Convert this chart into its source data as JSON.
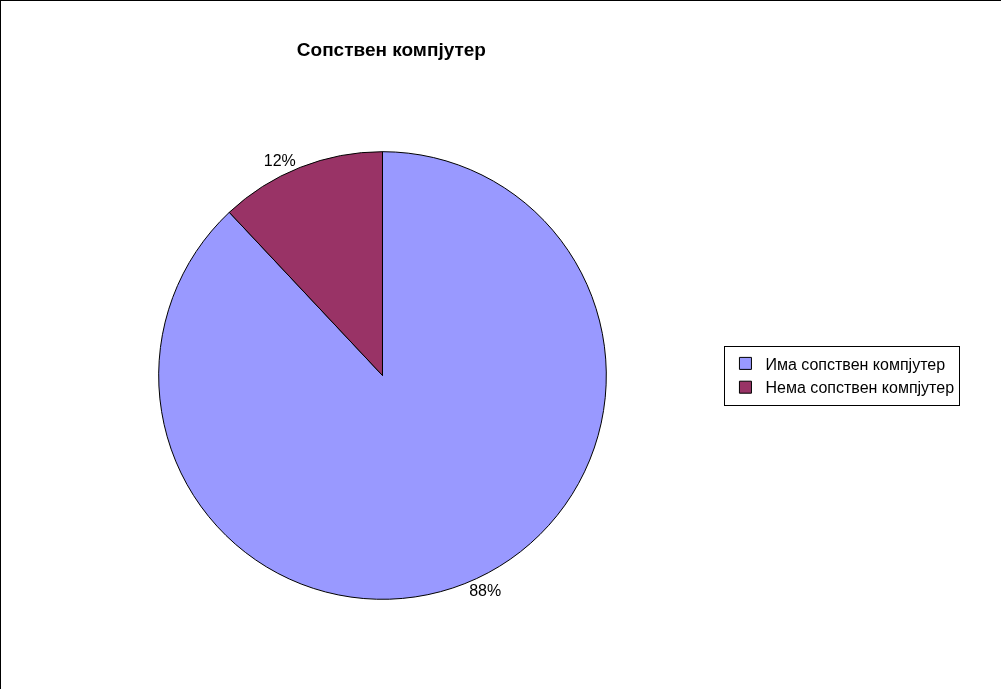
{
  "chart_data": {
    "type": "pie",
    "title": "Сопствен компјутер",
    "categories": [
      "Има сопствен компјутер",
      "Нема сопствен компјутер"
    ],
    "values": [
      88,
      12
    ],
    "colors": [
      "#9999ff",
      "#993366"
    ],
    "value_labels": [
      "88%",
      "12%"
    ],
    "legend": "right"
  }
}
